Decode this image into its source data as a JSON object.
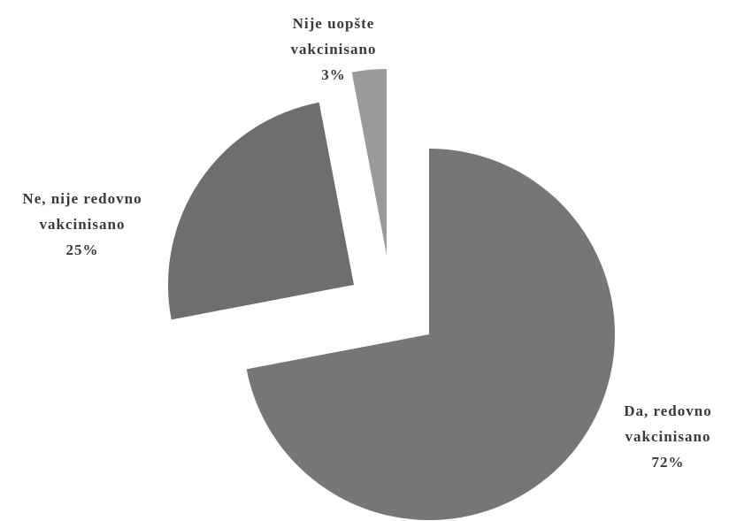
{
  "chart_data": {
    "type": "pie",
    "slices": [
      {
        "label_lines": [
          "Da, redovno",
          "vakcinisano"
        ],
        "value": 72,
        "value_label": "72%",
        "color": "#767676"
      },
      {
        "label_lines": [
          "Ne, nije redovno",
          "vakcinisano"
        ],
        "value": 25,
        "value_label": "25%",
        "color": "#6e6e6e"
      },
      {
        "label_lines": [
          "Nije uopšte",
          "vakcinisano"
        ],
        "value": 3,
        "value_label": "3%",
        "color": "#9a9a9a"
      }
    ],
    "exploded": true,
    "start_angle_deg": 0,
    "direction": "clockwise",
    "legend": "none"
  }
}
